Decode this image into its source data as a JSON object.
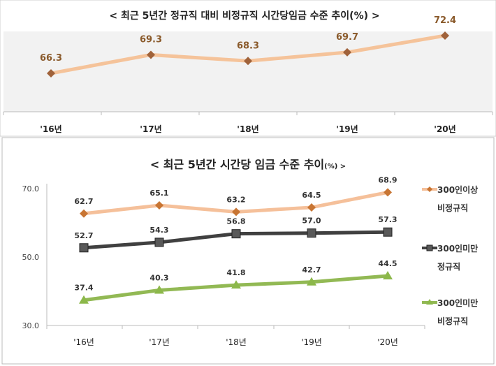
{
  "chart_data": [
    {
      "type": "line",
      "title": "< 최근 5년간 정규직 대비 비정규직 시간당임금  수준 추이(%) >",
      "categories": [
        "'16년",
        "'17년",
        "'18년",
        "'19년",
        "'20년"
      ],
      "series": [
        {
          "name": "정규직 대비 비정규직 시간당임금 수준",
          "values": [
            66.3,
            69.3,
            68.3,
            69.7,
            72.4
          ],
          "color": "#f5c39a",
          "marker_color": "#a0623a"
        }
      ],
      "ylim": [
        54,
        75
      ],
      "grid": false,
      "legend": "none"
    },
    {
      "type": "line",
      "title": "< 최근 5년간 시간당 임금 수준 추이",
      "title_suffix": "(%) >",
      "categories": [
        "'16년",
        "'17년",
        "'18년",
        "'19년",
        "'20년"
      ],
      "yticks": [
        "30.0",
        "50.0",
        "70.0"
      ],
      "ylim": [
        30,
        70
      ],
      "grid": false,
      "legend": "right",
      "series": [
        {
          "name_line1": "300인이상",
          "name_line2": "비정규직",
          "values": [
            62.7,
            65.1,
            63.2,
            64.5,
            68.9
          ],
          "color": "#f5c09a",
          "marker": "diamond",
          "marker_color": "#c87533",
          "labels": [
            "62.7",
            "65.1",
            "63.2",
            "64.5",
            "68.9"
          ]
        },
        {
          "name_line1": "300인미만",
          "name_line2": "정규직",
          "values": [
            52.7,
            54.3,
            56.8,
            57.0,
            57.3
          ],
          "color": "#404040",
          "marker": "square",
          "marker_color": "#595959",
          "labels": [
            "52.7",
            "54.3",
            "56.8",
            "57.0",
            "57.3"
          ]
        },
        {
          "name_line1": "300인미만",
          "name_line2": "비정규직",
          "values": [
            37.4,
            40.3,
            41.8,
            42.7,
            44.5
          ],
          "color": "#92b954",
          "marker": "triangle",
          "marker_color": "#8cb84a",
          "labels": [
            "37.4",
            "40.3",
            "41.8",
            "42.7",
            "44.5"
          ]
        }
      ]
    }
  ]
}
